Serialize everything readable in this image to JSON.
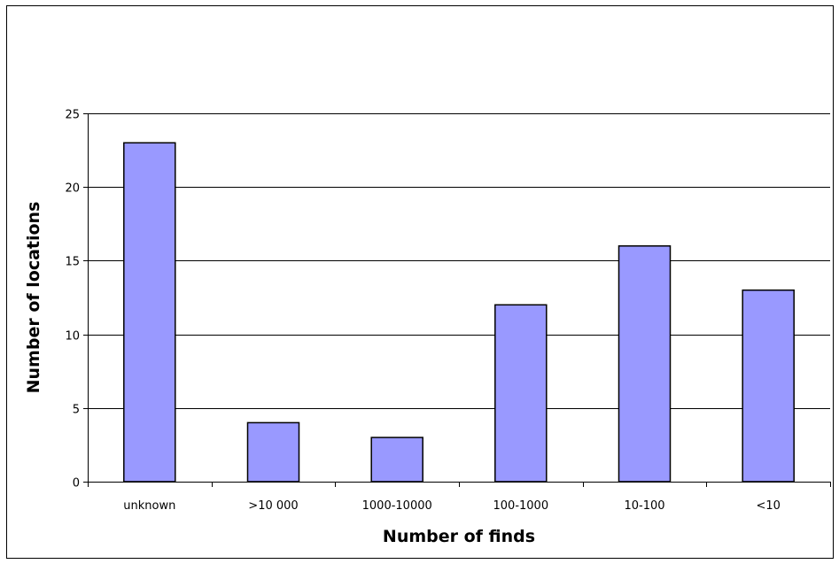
{
  "chart_data": {
    "type": "bar",
    "title": "",
    "xlabel": "Number of finds",
    "ylabel": "Number of locations",
    "categories": [
      "unknown",
      ">10 000",
      "1000-10000",
      "100-1000",
      "10-100",
      "<10"
    ],
    "values": [
      23,
      4,
      3,
      12,
      16,
      13
    ],
    "ylim": [
      0,
      25
    ],
    "yticks": [
      0,
      5,
      10,
      15,
      20,
      25
    ],
    "grid": true,
    "legend": "none",
    "colors": {
      "bar_fill": "#9999ff",
      "bar_stroke": "#000000",
      "grid": "#000000",
      "background": "#ffffff"
    }
  }
}
